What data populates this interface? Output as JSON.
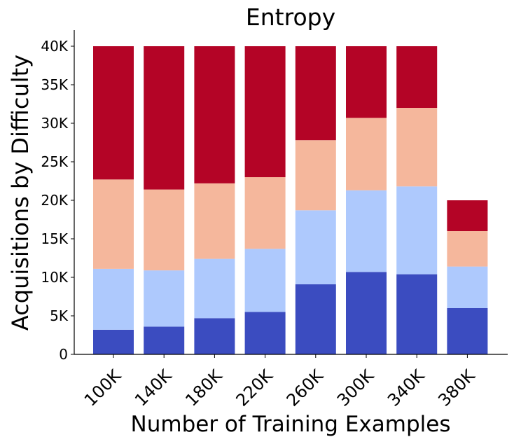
{
  "chart_data": {
    "type": "bar",
    "stacked": true,
    "title": "Entropy",
    "xlabel": "Number of Training Examples",
    "ylabel": "Acquisitions by Difficulty",
    "categories": [
      "100K",
      "140K",
      "180K",
      "220K",
      "260K",
      "300K",
      "340K",
      "380K"
    ],
    "ylim": [
      0,
      42000
    ],
    "yticks": [
      0,
      5000,
      10000,
      15000,
      20000,
      25000,
      30000,
      35000,
      40000
    ],
    "ytick_labels": [
      "0",
      "5K",
      "10K",
      "15K",
      "20K",
      "25K",
      "30K",
      "35K",
      "40K"
    ],
    "legend": "none",
    "grid": false,
    "series": [
      {
        "values": [
          3200,
          3600,
          4700,
          5500,
          9100,
          10700,
          10400,
          6000
        ],
        "color": "#3b4cc0"
      },
      {
        "values": [
          7900,
          7300,
          7700,
          8200,
          9600,
          10600,
          11400,
          5400
        ],
        "color": "#aec9fd"
      },
      {
        "values": [
          11600,
          10500,
          9800,
          9300,
          9100,
          9400,
          10200,
          4600
        ],
        "color": "#f5b79c"
      },
      {
        "values": [
          17300,
          18600,
          17800,
          17000,
          12200,
          9300,
          8000,
          4000
        ],
        "color": "#b40426"
      }
    ]
  }
}
